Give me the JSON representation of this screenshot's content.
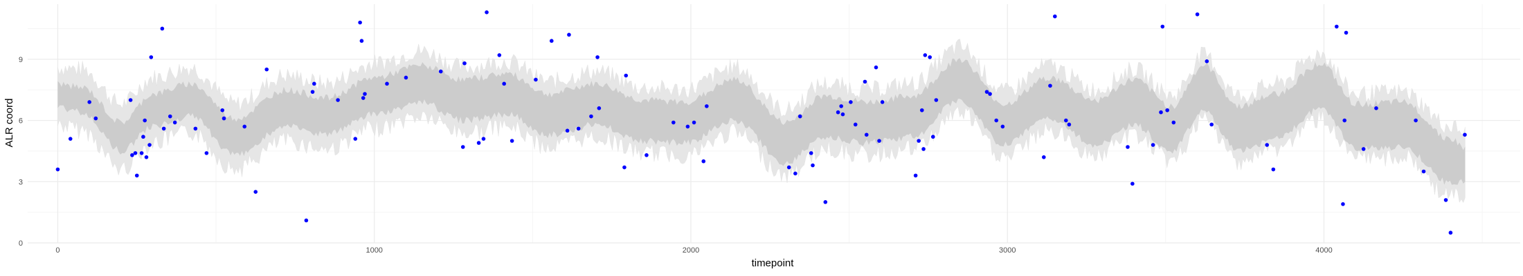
{
  "chart_data": {
    "type": "scatter",
    "xlabel": "timepoint",
    "ylabel": "ALR coord",
    "xlim": [
      -95,
      4620
    ],
    "ylim": [
      0,
      11.7
    ],
    "x_ticks": [
      0,
      1000,
      2000,
      3000,
      4000
    ],
    "x_tick_labels": [
      "0",
      "1000",
      "2000",
      "3000",
      "4000"
    ],
    "y_ticks": [
      0,
      3,
      6,
      9
    ],
    "y_tick_labels": [
      "0",
      "3",
      "6",
      "9"
    ],
    "grid": true,
    "legend": "none",
    "colors": {
      "points": "#0000ff",
      "outer_band": "#e6e6e6",
      "inner_band": "#cccccc",
      "grid_major": "#ebebeb",
      "grid_minor": "#f5f5f5"
    },
    "band": {
      "x": [
        0,
        80,
        200,
        300,
        420,
        560,
        720,
        850,
        1000,
        1150,
        1280,
        1420,
        1550,
        1700,
        1850,
        1980,
        2140,
        2300,
        2420,
        2560,
        2700,
        2850,
        2990,
        3130,
        3280,
        3400,
        3520,
        3620,
        3730,
        3850,
        3990,
        4100,
        4250,
        4400,
        4450
      ],
      "center": [
        7.2,
        7.0,
        5.2,
        6.5,
        7.0,
        5.2,
        6.6,
        6.2,
        7.2,
        7.8,
        7.0,
        7.3,
        6.3,
        6.8,
        6.0,
        5.9,
        7.0,
        4.9,
        6.2,
        5.9,
        6.2,
        8.0,
        5.8,
        7.1,
        5.9,
        6.9,
        5.6,
        7.6,
        5.6,
        6.2,
        7.7,
        5.7,
        5.8,
        4.0,
        3.8
      ],
      "inner_half": [
        0.6,
        0.6,
        0.7,
        0.8,
        0.8,
        0.9,
        0.9,
        0.9,
        0.9,
        0.9,
        1.0,
        1.0,
        1.0,
        1.0,
        1.0,
        1.0,
        1.0,
        1.0,
        1.0,
        1.0,
        1.0,
        1.0,
        1.0,
        1.0,
        1.1,
        1.1,
        1.1,
        1.1,
        1.1,
        1.1,
        1.1,
        1.1,
        1.1,
        1.1,
        0.8
      ],
      "outer_half": [
        1.4,
        1.5,
        1.6,
        1.6,
        1.6,
        1.6,
        1.6,
        1.6,
        1.6,
        1.6,
        1.6,
        1.6,
        1.6,
        1.6,
        1.6,
        1.6,
        1.6,
        1.6,
        1.6,
        1.6,
        1.6,
        1.6,
        1.6,
        1.6,
        1.6,
        1.6,
        1.6,
        1.6,
        1.6,
        1.6,
        1.6,
        1.6,
        1.6,
        1.7,
        1.6
      ]
    },
    "points": [
      {
        "x": 0,
        "y": 3.6
      },
      {
        "x": 40,
        "y": 5.1
      },
      {
        "x": 100,
        "y": 6.9
      },
      {
        "x": 120,
        "y": 6.1
      },
      {
        "x": 230,
        "y": 7.0
      },
      {
        "x": 235,
        "y": 4.3
      },
      {
        "x": 245,
        "y": 4.4
      },
      {
        "x": 250,
        "y": 3.3
      },
      {
        "x": 265,
        "y": 4.4
      },
      {
        "x": 270,
        "y": 5.2
      },
      {
        "x": 275,
        "y": 6.0
      },
      {
        "x": 280,
        "y": 4.2
      },
      {
        "x": 290,
        "y": 4.8
      },
      {
        "x": 295,
        "y": 9.1
      },
      {
        "x": 330,
        "y": 10.5
      },
      {
        "x": 335,
        "y": 5.6
      },
      {
        "x": 355,
        "y": 6.2
      },
      {
        "x": 370,
        "y": 5.9
      },
      {
        "x": 435,
        "y": 5.6
      },
      {
        "x": 470,
        "y": 4.4
      },
      {
        "x": 520,
        "y": 6.5
      },
      {
        "x": 525,
        "y": 6.1
      },
      {
        "x": 590,
        "y": 5.7
      },
      {
        "x": 625,
        "y": 2.5
      },
      {
        "x": 660,
        "y": 8.5
      },
      {
        "x": 785,
        "y": 1.1
      },
      {
        "x": 805,
        "y": 7.4
      },
      {
        "x": 810,
        "y": 7.8
      },
      {
        "x": 885,
        "y": 7.0
      },
      {
        "x": 940,
        "y": 5.1
      },
      {
        "x": 955,
        "y": 10.8
      },
      {
        "x": 960,
        "y": 9.9
      },
      {
        "x": 965,
        "y": 7.1
      },
      {
        "x": 970,
        "y": 7.3
      },
      {
        "x": 1040,
        "y": 7.8
      },
      {
        "x": 1100,
        "y": 8.1
      },
      {
        "x": 1210,
        "y": 8.4
      },
      {
        "x": 1280,
        "y": 4.7
      },
      {
        "x": 1285,
        "y": 8.8
      },
      {
        "x": 1330,
        "y": 4.9
      },
      {
        "x": 1345,
        "y": 5.1
      },
      {
        "x": 1355,
        "y": 11.3
      },
      {
        "x": 1395,
        "y": 9.2
      },
      {
        "x": 1410,
        "y": 7.8
      },
      {
        "x": 1435,
        "y": 5.0
      },
      {
        "x": 1510,
        "y": 8.0
      },
      {
        "x": 1560,
        "y": 9.9
      },
      {
        "x": 1610,
        "y": 5.5
      },
      {
        "x": 1615,
        "y": 10.2
      },
      {
        "x": 1645,
        "y": 5.6
      },
      {
        "x": 1685,
        "y": 6.2
      },
      {
        "x": 1705,
        "y": 9.1
      },
      {
        "x": 1710,
        "y": 6.6
      },
      {
        "x": 1790,
        "y": 3.7
      },
      {
        "x": 1795,
        "y": 8.2
      },
      {
        "x": 1860,
        "y": 4.3
      },
      {
        "x": 1945,
        "y": 5.9
      },
      {
        "x": 1990,
        "y": 5.7
      },
      {
        "x": 2010,
        "y": 5.9
      },
      {
        "x": 2040,
        "y": 4.0
      },
      {
        "x": 2050,
        "y": 6.7
      },
      {
        "x": 2310,
        "y": 3.7
      },
      {
        "x": 2330,
        "y": 3.4
      },
      {
        "x": 2345,
        "y": 6.2
      },
      {
        "x": 2380,
        "y": 4.4
      },
      {
        "x": 2385,
        "y": 3.8
      },
      {
        "x": 2425,
        "y": 2.0
      },
      {
        "x": 2465,
        "y": 6.4
      },
      {
        "x": 2475,
        "y": 6.7
      },
      {
        "x": 2480,
        "y": 6.3
      },
      {
        "x": 2505,
        "y": 6.9
      },
      {
        "x": 2520,
        "y": 5.8
      },
      {
        "x": 2550,
        "y": 7.9
      },
      {
        "x": 2555,
        "y": 5.3
      },
      {
        "x": 2585,
        "y": 8.6
      },
      {
        "x": 2595,
        "y": 5.0
      },
      {
        "x": 2605,
        "y": 6.9
      },
      {
        "x": 2710,
        "y": 3.3
      },
      {
        "x": 2720,
        "y": 5.0
      },
      {
        "x": 2730,
        "y": 6.5
      },
      {
        "x": 2735,
        "y": 4.6
      },
      {
        "x": 2740,
        "y": 9.2
      },
      {
        "x": 2755,
        "y": 9.1
      },
      {
        "x": 2765,
        "y": 5.2
      },
      {
        "x": 2775,
        "y": 7.0
      },
      {
        "x": 2935,
        "y": 7.4
      },
      {
        "x": 2945,
        "y": 7.3
      },
      {
        "x": 2965,
        "y": 6.0
      },
      {
        "x": 2985,
        "y": 5.7
      },
      {
        "x": 3115,
        "y": 4.2
      },
      {
        "x": 3135,
        "y": 7.7
      },
      {
        "x": 3150,
        "y": 11.1
      },
      {
        "x": 3185,
        "y": 6.0
      },
      {
        "x": 3195,
        "y": 5.8
      },
      {
        "x": 3380,
        "y": 4.7
      },
      {
        "x": 3395,
        "y": 2.9
      },
      {
        "x": 3460,
        "y": 4.8
      },
      {
        "x": 3485,
        "y": 6.4
      },
      {
        "x": 3490,
        "y": 10.6
      },
      {
        "x": 3505,
        "y": 6.5
      },
      {
        "x": 3525,
        "y": 5.9
      },
      {
        "x": 3600,
        "y": 11.2
      },
      {
        "x": 3630,
        "y": 8.9
      },
      {
        "x": 3645,
        "y": 5.8
      },
      {
        "x": 3820,
        "y": 4.8
      },
      {
        "x": 3840,
        "y": 3.6
      },
      {
        "x": 4040,
        "y": 10.6
      },
      {
        "x": 4060,
        "y": 1.9
      },
      {
        "x": 4065,
        "y": 6.0
      },
      {
        "x": 4070,
        "y": 10.3
      },
      {
        "x": 4125,
        "y": 4.6
      },
      {
        "x": 4165,
        "y": 6.6
      },
      {
        "x": 4290,
        "y": 6.0
      },
      {
        "x": 4315,
        "y": 3.5
      },
      {
        "x": 4385,
        "y": 2.1
      },
      {
        "x": 4400,
        "y": 0.5
      },
      {
        "x": 4445,
        "y": 5.3
      }
    ]
  }
}
